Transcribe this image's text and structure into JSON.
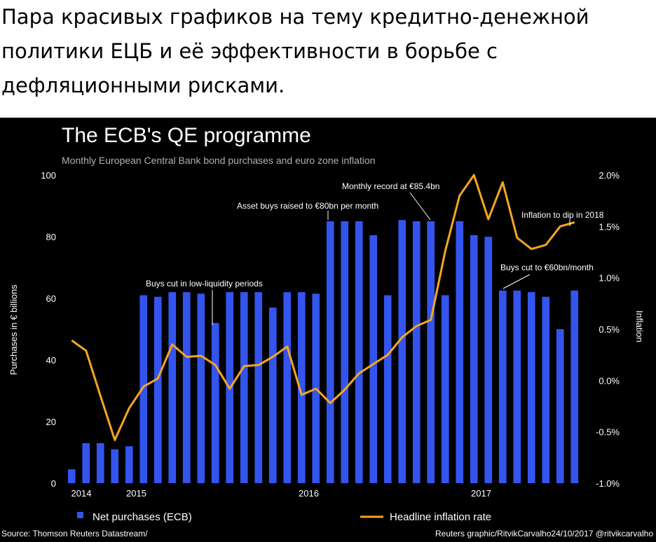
{
  "post": {
    "text": "Пара красивых графиков на тему кредитно-денежной политики ЕЦБ и её эффективности в борьбе с дефляционными рисками."
  },
  "chart_data": {
    "type": "bar+line",
    "title": "The ECB's QE programme",
    "subtitle": "Monthly European Central Bank bond purchases and euro zone inflation",
    "ylabel_left": "Purchases in € billions",
    "ylabel_right": "Inflation",
    "ylim_left": [
      0,
      100
    ],
    "yticks_left": [
      "0",
      "20",
      "40",
      "60",
      "80",
      "100"
    ],
    "ylim_right": [
      -1.0,
      2.0
    ],
    "yticks_right": [
      "-1.0%",
      "-0.5%",
      "0.0%",
      "0.5%",
      "1.0%",
      "1.5%",
      "2.0%"
    ],
    "x_year_labels": [
      "2014",
      "2015",
      "2016",
      "2017"
    ],
    "series": [
      {
        "name": "Net purchases (ECB)",
        "kind": "bar",
        "color": "#3355ee",
        "values": [
          4.5,
          13,
          13,
          11,
          12,
          61,
          60.5,
          62,
          62,
          61.5,
          52,
          62,
          62,
          62,
          57,
          62,
          62,
          61.5,
          85,
          85,
          85,
          80.5,
          61,
          85.4,
          85,
          85,
          61,
          85,
          80.5,
          80,
          62.5,
          62.5,
          62,
          60.5,
          50,
          62.5
        ]
      },
      {
        "name": "Headline inflation rate",
        "kind": "line",
        "color": "#f5a623",
        "values": [
          0.39,
          0.29,
          -0.15,
          -0.58,
          -0.27,
          -0.06,
          0.02,
          0.35,
          0.23,
          0.24,
          0.15,
          -0.08,
          0.14,
          0.15,
          0.23,
          0.33,
          -0.14,
          -0.08,
          -0.22,
          -0.09,
          0.07,
          0.16,
          0.25,
          0.42,
          0.53,
          0.59,
          1.26,
          1.8,
          2.0,
          1.57,
          1.93,
          1.39,
          1.28,
          1.32,
          1.5,
          1.54
        ]
      }
    ],
    "annotations": [
      "Buys cut in low-liquidity periods",
      "Asset buys raised to €80bn per month",
      "Monthly record at €85.4bn",
      "Inflation to dip in 2018",
      "Buys cut to €60bn/month"
    ],
    "legend_position": "bottom",
    "grid": false,
    "source_left": "Source: Thomson Reuters Datastream/",
    "source_right": "Reuters graphic/RitvikCarvalho24/10/2017 @ritvikcarvalho"
  }
}
